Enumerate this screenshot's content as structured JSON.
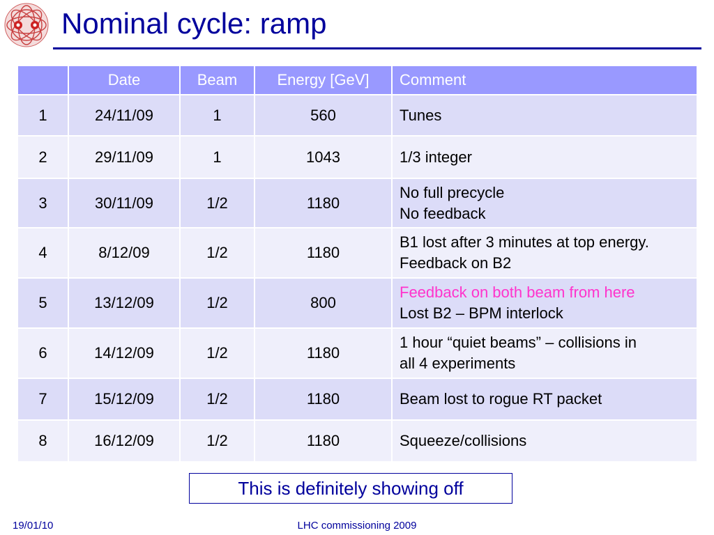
{
  "slide": {
    "title": "Nominal cycle: ramp"
  },
  "logo": {
    "icon": "lhc-ring-logo"
  },
  "table": {
    "headers": [
      "",
      "Date",
      "Beam",
      "Energy [GeV]",
      "Comment"
    ],
    "rows": [
      {
        "num": "1",
        "date": "24/11/09",
        "beam": "1",
        "energy": "560",
        "comment": [
          "Tunes"
        ]
      },
      {
        "num": "2",
        "date": "29/11/09",
        "beam": "1",
        "energy": "1043",
        "comment": [
          "1/3 integer"
        ]
      },
      {
        "num": "3",
        "date": "30/11/09",
        "beam": "1/2",
        "energy": "1180",
        "comment": [
          "No full precycle",
          "No feedback"
        ]
      },
      {
        "num": "4",
        "date": "8/12/09",
        "beam": "1/2",
        "energy": "1180",
        "comment": [
          "B1 lost after 3 minutes at top energy.",
          "Feedback on B2"
        ]
      },
      {
        "num": "5",
        "date": "13/12/09",
        "beam": "1/2",
        "energy": "800",
        "comment": [
          "Feedback on both beam from here",
          "Lost B2 – BPM interlock"
        ]
      },
      {
        "num": "6",
        "date": "14/12/09",
        "beam": "1/2",
        "energy": "1180",
        "comment": [
          "1 hour “quiet beams” – collisions in",
          "all 4 experiments"
        ]
      },
      {
        "num": "7",
        "date": "15/12/09",
        "beam": "1/2",
        "energy": "1180",
        "comment": [
          "Beam lost to rogue RT packet"
        ]
      },
      {
        "num": "8",
        "date": "16/12/09",
        "beam": "1/2",
        "energy": "1180",
        "comment": [
          "Squeeze/collisions"
        ]
      }
    ]
  },
  "callout": {
    "text": "This is definitely showing off"
  },
  "footer": {
    "date": "19/01/10",
    "center": "LHC commissioning 2009"
  },
  "colors": {
    "title": "#00009c",
    "header_bg": "#9999ff",
    "row_odd": "#dcdcf8",
    "row_even": "#efeffb",
    "highlight": "#ff33cc"
  }
}
